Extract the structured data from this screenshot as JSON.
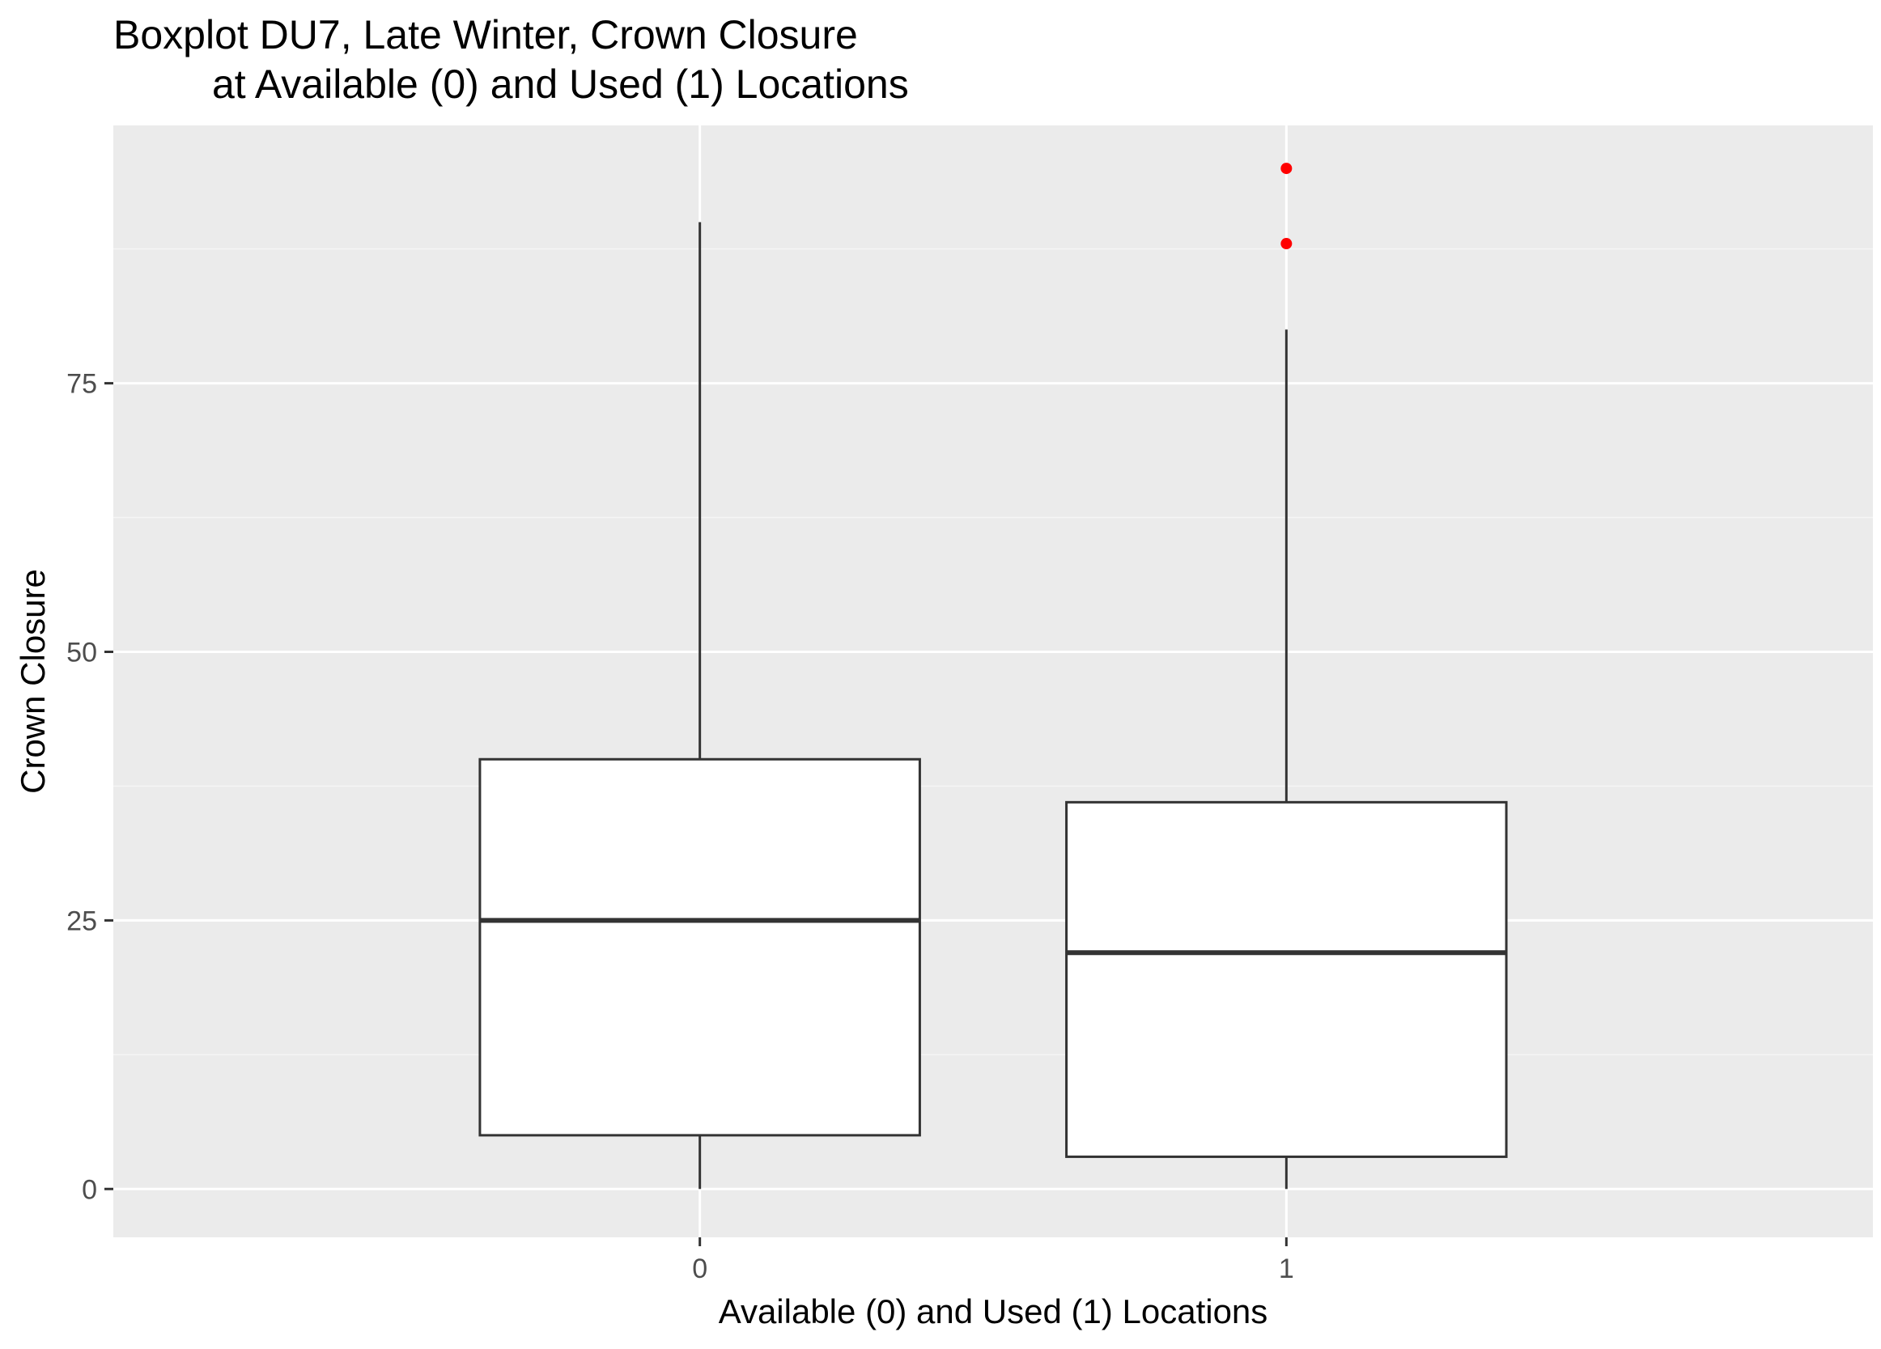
{
  "chart_data": {
    "type": "boxplot",
    "title_line1": "Boxplot DU7, Late Winter, Crown Closure",
    "title_line2": "at Available (0) and Used (1) Locations",
    "xlabel": "Available (0) and Used (1) Locations",
    "ylabel": "Crown Closure",
    "categories": [
      "0",
      "1"
    ],
    "ylim": [
      -4.5,
      99
    ],
    "y_ticks": [
      0,
      25,
      50,
      75
    ],
    "y_tick_labels": [
      "0",
      "25",
      "50",
      "75"
    ],
    "grid": true,
    "boxes": [
      {
        "category": "0",
        "whisker_low": 0,
        "q1": 5,
        "median": 25,
        "q3": 40,
        "whisker_high": 90,
        "outliers": []
      },
      {
        "category": "1",
        "whisker_low": 0,
        "q1": 3,
        "median": 22,
        "q3": 36,
        "whisker_high": 80,
        "outliers": [
          88,
          95
        ]
      }
    ],
    "colors": {
      "panel_background": "#ebebeb",
      "grid_major": "#ffffff",
      "grid_minor": "#f5f5f5",
      "box_fill": "#ffffff",
      "box_line": "#333333",
      "outlier": "#ff0000",
      "axis_text": "#4d4d4d",
      "title_text": "#000000"
    }
  }
}
